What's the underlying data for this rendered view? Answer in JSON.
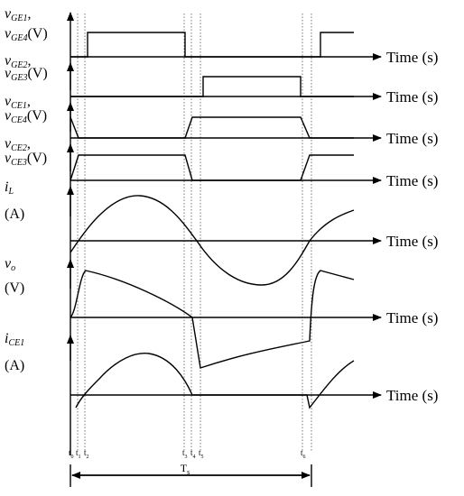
{
  "panels": [
    {
      "label": [
        {
          "main": "v",
          "sub": "GE1",
          "tail": ","
        },
        {
          "main": "v",
          "sub": "GE4",
          "tail": "(V)"
        }
      ],
      "axis_label": "Time (s)"
    },
    {
      "label": [
        {
          "main": "v",
          "sub": "GE2",
          "tail": ","
        },
        {
          "main": "v",
          "sub": "GE3",
          "tail": "(V)"
        }
      ],
      "axis_label": "Time (s)"
    },
    {
      "label": [
        {
          "main": "v",
          "sub": "CE1",
          "tail": ","
        },
        {
          "main": "v",
          "sub": "CE4",
          "tail": "(V)"
        }
      ],
      "axis_label": "Time (s)"
    },
    {
      "label": [
        {
          "main": "v",
          "sub": "CE2",
          "tail": ","
        },
        {
          "main": "v",
          "sub": "CE3",
          "tail": "(V)"
        }
      ],
      "axis_label": "Time (s)"
    },
    {
      "label": [
        {
          "main": "i",
          "sub": "L"
        },
        {
          "main": "(A)"
        }
      ],
      "axis_label": "Time (s)"
    },
    {
      "label": [
        {
          "main": "v",
          "sub": "o"
        },
        {
          "main": "(V)"
        }
      ],
      "axis_label": "Time (s)"
    },
    {
      "label": [
        {
          "main": "i",
          "sub": "CE1"
        },
        {
          "main": "(A)"
        }
      ],
      "axis_label": "Time (s)"
    }
  ],
  "time_marks": [
    {
      "main": "t",
      "sub": "0"
    },
    {
      "main": "t",
      "sub": "1"
    },
    {
      "main": "t",
      "sub": "2"
    },
    {
      "main": "t",
      "sub": "3"
    },
    {
      "main": "t",
      "sub": "4"
    },
    {
      "main": "t",
      "sub": "5"
    },
    {
      "main": "t",
      "sub": "6"
    }
  ],
  "period": {
    "main": "T",
    "sub": "s"
  }
}
